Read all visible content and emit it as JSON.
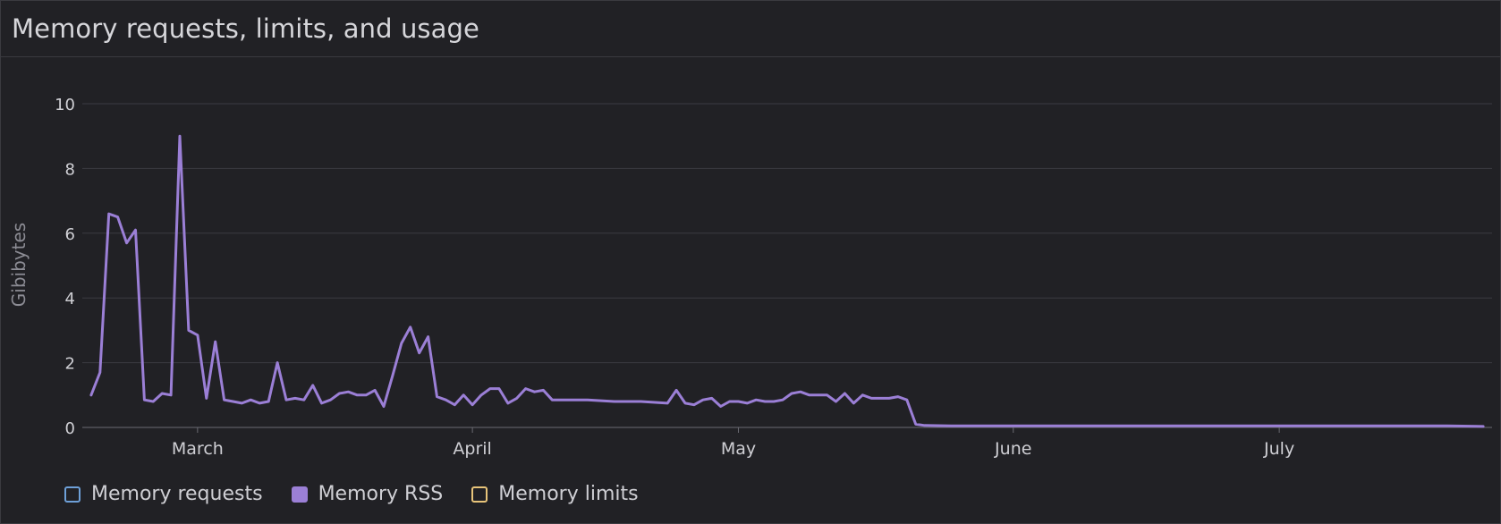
{
  "panel": {
    "title": "Memory requests, limits, and usage"
  },
  "colors": {
    "rss": "#9b7fd6",
    "requests": "#6ea0d8",
    "limits": "#e8c47a",
    "grid": "#3b3b42",
    "text": "#cfcfd4",
    "axis_label": "#8c8c94"
  },
  "chart_data": {
    "type": "line",
    "title": "Memory requests, limits, and usage",
    "ylabel": "Gibibytes",
    "xlabel": "",
    "ylim": [
      0,
      10
    ],
    "y_ticks": [
      "0",
      "2",
      "4",
      "6",
      "8",
      "10"
    ],
    "x_ticks": [
      {
        "label": "March",
        "date": "2024-03-01"
      },
      {
        "label": "April",
        "date": "2024-04-01"
      },
      {
        "label": "May",
        "date": "2024-05-01"
      },
      {
        "label": "June",
        "date": "2024-06-01"
      },
      {
        "label": "July",
        "date": "2024-07-01"
      }
    ],
    "xlim": [
      "2024-02-17",
      "2024-07-25"
    ],
    "grid": true,
    "legend_position": "bottom-left",
    "legend": [
      {
        "name": "Memory requests",
        "key": "requests",
        "filled": false
      },
      {
        "name": "Memory RSS",
        "key": "rss",
        "filled": true
      },
      {
        "name": "Memory limits",
        "key": "limits",
        "filled": false
      }
    ],
    "series": [
      {
        "name": "Memory RSS",
        "x": [
          "2024-02-18",
          "2024-02-19",
          "2024-02-20",
          "2024-02-21",
          "2024-02-22",
          "2024-02-23",
          "2024-02-24",
          "2024-02-25",
          "2024-02-26",
          "2024-02-27",
          "2024-02-28",
          "2024-02-29",
          "2024-03-01",
          "2024-03-02",
          "2024-03-03",
          "2024-03-04",
          "2024-03-05",
          "2024-03-06",
          "2024-03-07",
          "2024-03-08",
          "2024-03-09",
          "2024-03-10",
          "2024-03-11",
          "2024-03-12",
          "2024-03-13",
          "2024-03-14",
          "2024-03-15",
          "2024-03-16",
          "2024-03-17",
          "2024-03-18",
          "2024-03-19",
          "2024-03-20",
          "2024-03-21",
          "2024-03-22",
          "2024-03-23",
          "2024-03-24",
          "2024-03-25",
          "2024-03-26",
          "2024-03-27",
          "2024-03-28",
          "2024-03-29",
          "2024-03-30",
          "2024-03-31",
          "2024-04-01",
          "2024-04-02",
          "2024-04-03",
          "2024-04-04",
          "2024-04-05",
          "2024-04-06",
          "2024-04-07",
          "2024-04-08",
          "2024-04-09",
          "2024-04-10",
          "2024-04-11",
          "2024-04-14",
          "2024-04-17",
          "2024-04-20",
          "2024-04-23",
          "2024-04-24",
          "2024-04-25",
          "2024-04-26",
          "2024-04-27",
          "2024-04-28",
          "2024-04-29",
          "2024-04-30",
          "2024-05-01",
          "2024-05-02",
          "2024-05-03",
          "2024-05-04",
          "2024-05-05",
          "2024-05-06",
          "2024-05-07",
          "2024-05-08",
          "2024-05-09",
          "2024-05-10",
          "2024-05-11",
          "2024-05-12",
          "2024-05-13",
          "2024-05-14",
          "2024-05-15",
          "2024-05-16",
          "2024-05-17",
          "2024-05-18",
          "2024-05-19",
          "2024-05-20",
          "2024-05-21",
          "2024-05-22",
          "2024-05-25",
          "2024-06-01",
          "2024-06-10",
          "2024-06-20",
          "2024-07-01",
          "2024-07-10",
          "2024-07-20",
          "2024-07-24"
        ],
        "y": [
          1.0,
          1.7,
          6.6,
          6.5,
          5.7,
          6.1,
          0.85,
          0.8,
          1.05,
          1.0,
          9.0,
          3.0,
          2.85,
          0.9,
          2.65,
          0.85,
          0.8,
          0.75,
          0.85,
          0.75,
          0.8,
          2.0,
          0.85,
          0.9,
          0.85,
          1.3,
          0.75,
          0.85,
          1.05,
          1.1,
          1.0,
          1.0,
          1.15,
          0.65,
          1.6,
          2.6,
          3.1,
          2.3,
          2.8,
          0.95,
          0.85,
          0.7,
          1.0,
          0.7,
          1.0,
          1.2,
          1.2,
          0.75,
          0.9,
          1.2,
          1.1,
          1.15,
          0.85,
          0.85,
          0.85,
          0.8,
          0.8,
          0.75,
          1.15,
          0.75,
          0.7,
          0.85,
          0.9,
          0.65,
          0.8,
          0.8,
          0.75,
          0.85,
          0.8,
          0.8,
          0.85,
          1.05,
          1.1,
          1.0,
          1.0,
          1.0,
          0.8,
          1.05,
          0.75,
          1.0,
          0.9,
          0.9,
          0.9,
          0.95,
          0.85,
          0.1,
          0.06,
          0.05,
          0.05,
          0.05,
          0.05,
          0.05,
          0.05,
          0.05,
          0.03
        ]
      }
    ]
  }
}
